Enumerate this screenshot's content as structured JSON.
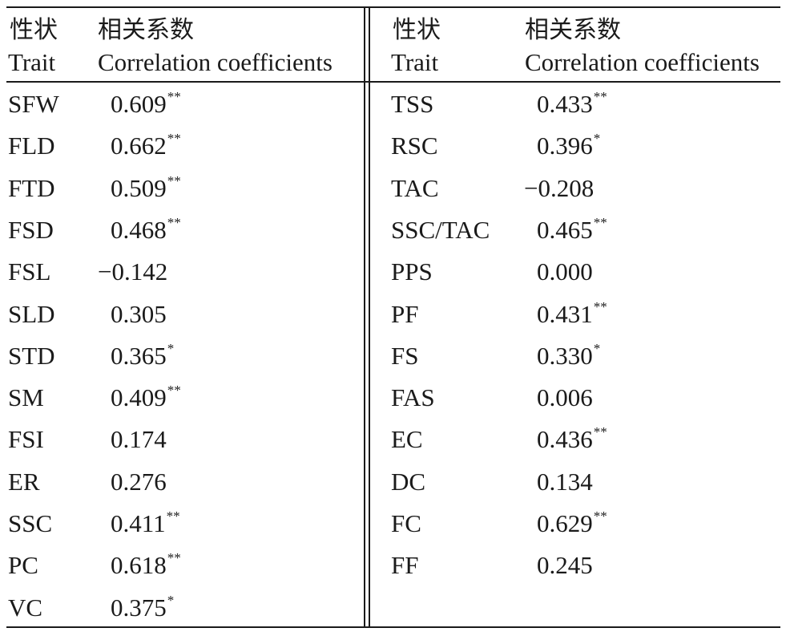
{
  "header": {
    "left_trait_cn": "性状",
    "left_trait_en": "Trait",
    "left_corr_cn": "相关系数",
    "left_corr_en": "Correlation coefficients",
    "right_trait_cn": "性状",
    "right_trait_en": "Trait",
    "right_corr_cn": "相关系数",
    "right_corr_en": "Correlation coefficients"
  },
  "left_rows": [
    {
      "trait": "SFW",
      "value": "0.609",
      "sig": "**"
    },
    {
      "trait": "FLD",
      "value": "0.662",
      "sig": "**"
    },
    {
      "trait": "FTD",
      "value": "0.509",
      "sig": "**"
    },
    {
      "trait": "FSD",
      "value": "0.468",
      "sig": "**"
    },
    {
      "trait": "FSL",
      "value": "−0.142",
      "sig": ""
    },
    {
      "trait": "SLD",
      "value": "0.305",
      "sig": ""
    },
    {
      "trait": "STD",
      "value": "0.365",
      "sig": "*"
    },
    {
      "trait": "SM",
      "value": "0.409",
      "sig": "**"
    },
    {
      "trait": "FSI",
      "value": "0.174",
      "sig": ""
    },
    {
      "trait": "ER",
      "value": "0.276",
      "sig": ""
    },
    {
      "trait": "SSC",
      "value": "0.411",
      "sig": "**"
    },
    {
      "trait": "PC",
      "value": "0.618",
      "sig": "**"
    },
    {
      "trait": "VC",
      "value": "0.375",
      "sig": "*"
    }
  ],
  "right_rows": [
    {
      "trait": "TSS",
      "value": "0.433",
      "sig": "**"
    },
    {
      "trait": "RSC",
      "value": "0.396",
      "sig": "*"
    },
    {
      "trait": "TAC",
      "value": "−0.208",
      "sig": ""
    },
    {
      "trait": "SSC/TAC",
      "value": "0.465",
      "sig": "**"
    },
    {
      "trait": "PPS",
      "value": "0.000",
      "sig": ""
    },
    {
      "trait": "PF",
      "value": "0.431",
      "sig": "**"
    },
    {
      "trait": "FS",
      "value": "0.330",
      "sig": "*"
    },
    {
      "trait": "FAS",
      "value": "0.006",
      "sig": ""
    },
    {
      "trait": "EC",
      "value": "0.436",
      "sig": "**"
    },
    {
      "trait": "DC",
      "value": "0.134",
      "sig": ""
    },
    {
      "trait": "FC",
      "value": "0.629",
      "sig": "**"
    },
    {
      "trait": "FF",
      "value": "0.245",
      "sig": ""
    }
  ]
}
